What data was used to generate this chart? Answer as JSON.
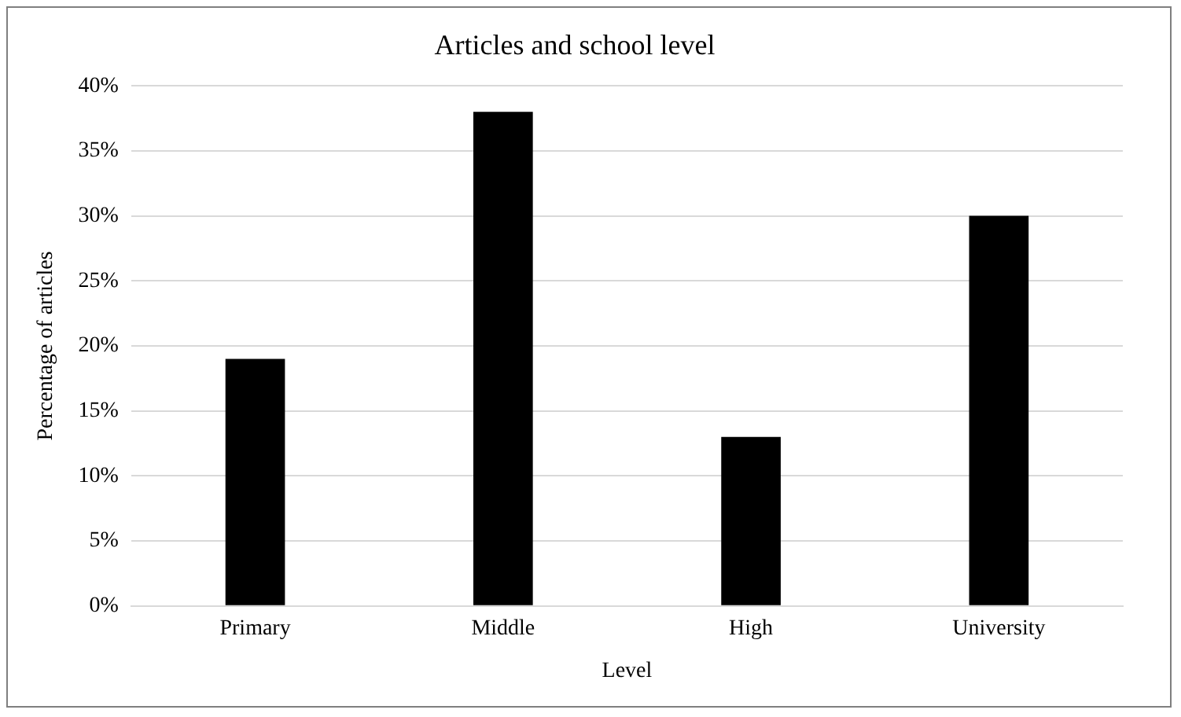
{
  "chart_data": {
    "type": "bar",
    "title": "Articles and school level",
    "xlabel": "Level",
    "ylabel": "Percentage of articles",
    "categories": [
      "Primary",
      "Middle",
      "High",
      "University"
    ],
    "values": [
      19,
      38,
      13,
      30
    ],
    "color": "#000000",
    "ylim": [
      0,
      40
    ],
    "yticks": [
      {
        "value": 0,
        "label": "0%"
      },
      {
        "value": 5,
        "label": "5%"
      },
      {
        "value": 10,
        "label": "10%"
      },
      {
        "value": 15,
        "label": "15%"
      },
      {
        "value": 20,
        "label": "20%"
      },
      {
        "value": 25,
        "label": "25%"
      },
      {
        "value": 30,
        "label": "30%"
      },
      {
        "value": 35,
        "label": "35%"
      },
      {
        "value": 40,
        "label": "40%"
      }
    ],
    "grid": "y",
    "legend": false
  }
}
